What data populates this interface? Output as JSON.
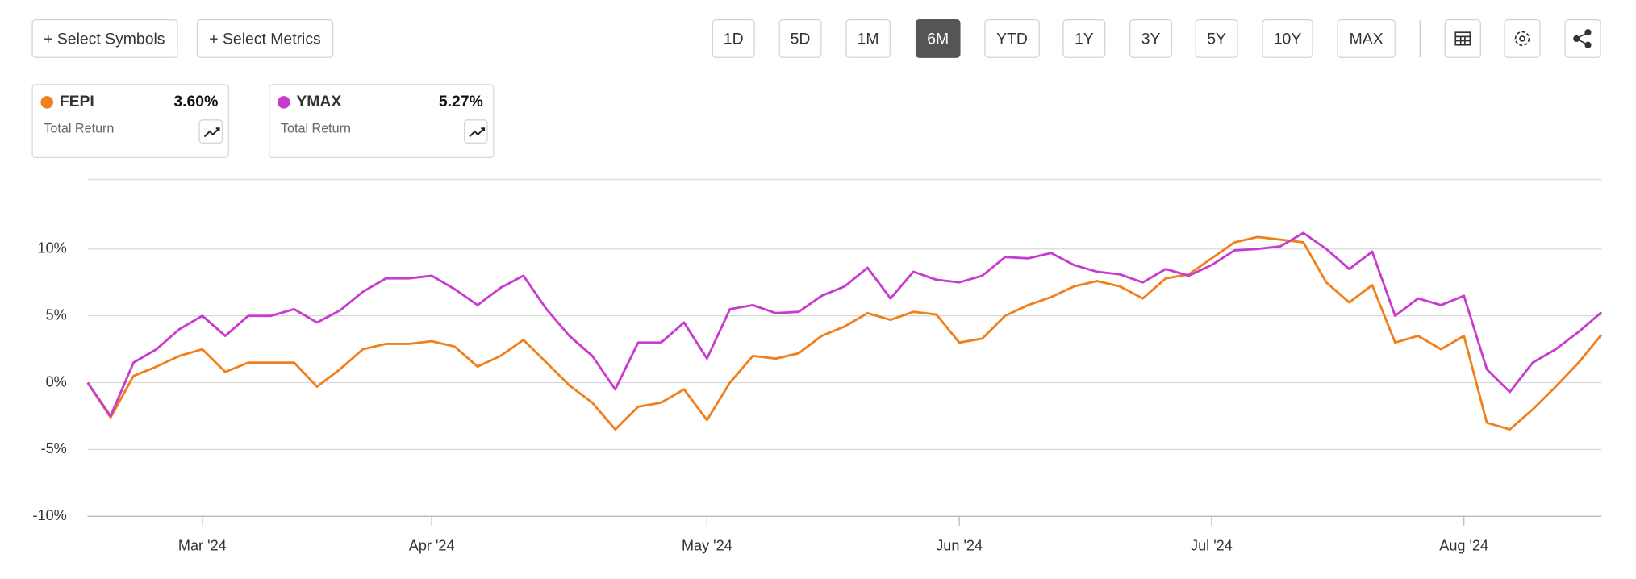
{
  "toolbar": {
    "select_symbols": "+ Select Symbols",
    "select_metrics": "+ Select Metrics",
    "ranges": [
      "1D",
      "5D",
      "1M",
      "6M",
      "YTD",
      "1Y",
      "3Y",
      "5Y",
      "10Y",
      "MAX"
    ],
    "active_range": "6M"
  },
  "chart_data": {
    "type": "line",
    "categories": [
      null,
      null,
      null,
      null,
      null,
      "Mar '24",
      null,
      null,
      null,
      null,
      null,
      null,
      null,
      null,
      null,
      "Apr '24",
      null,
      null,
      null,
      null,
      null,
      null,
      null,
      null,
      null,
      null,
      null,
      "May '24",
      null,
      null,
      null,
      null,
      null,
      null,
      null,
      null,
      null,
      null,
      "Jun '24",
      null,
      null,
      null,
      null,
      null,
      null,
      null,
      null,
      null,
      null,
      "Jul '24",
      null,
      null,
      null,
      null,
      null,
      null,
      null,
      null,
      null,
      null,
      "Aug '24",
      null,
      null,
      null,
      null,
      null,
      null
    ],
    "series": [
      {
        "name": "FEPI",
        "color": "#f07f1c",
        "legend_value": "3.60%",
        "legend_caption": "Total Return",
        "values": [
          0,
          -2.6,
          0.5,
          1.2,
          2.0,
          2.5,
          0.8,
          1.5,
          1.5,
          1.5,
          -0.3,
          1.0,
          2.5,
          2.9,
          2.9,
          3.1,
          2.7,
          1.2,
          2.0,
          3.2,
          1.5,
          -0.2,
          -1.5,
          -3.5,
          -1.8,
          -1.5,
          -0.5,
          -2.8,
          0,
          2.0,
          1.8,
          2.2,
          3.5,
          4.2,
          5.2,
          4.7,
          5.3,
          5.1,
          3.0,
          3.3,
          5.0,
          5.8,
          6.4,
          7.2,
          7.6,
          7.2,
          6.3,
          7.8,
          8.1,
          9.3,
          10.5,
          10.9,
          10.7,
          10.5,
          7.5,
          6.0,
          7.3,
          3.0,
          3.5,
          2.5,
          3.5,
          -3.0,
          -3.5,
          -2.0,
          -0.3,
          1.5,
          3.6
        ]
      },
      {
        "name": "YMAX",
        "color": "#c63cce",
        "legend_value": "5.27%",
        "legend_caption": "Total Return",
        "values": [
          0,
          -2.5,
          1.5,
          2.5,
          4.0,
          5.0,
          3.5,
          5.0,
          5.0,
          5.5,
          4.5,
          5.4,
          6.8,
          7.8,
          7.8,
          8.0,
          7.0,
          5.8,
          7.1,
          8.0,
          5.5,
          3.5,
          2.0,
          -0.5,
          3.0,
          3.0,
          4.5,
          1.8,
          5.5,
          5.8,
          5.2,
          5.3,
          6.5,
          7.2,
          8.6,
          6.3,
          8.3,
          7.7,
          7.5,
          8.0,
          9.4,
          9.3,
          9.7,
          8.8,
          8.3,
          8.1,
          7.5,
          8.5,
          8.0,
          8.8,
          9.9,
          10.0,
          10.2,
          11.2,
          10.0,
          8.5,
          9.8,
          5.0,
          6.3,
          5.8,
          6.5,
          1.0,
          -0.7,
          1.5,
          2.5,
          3.8,
          5.27
        ]
      }
    ],
    "ylim": [
      -10,
      15.2
    ],
    "yticks": [
      {
        "value": -10,
        "label": "-10%"
      },
      {
        "value": -5,
        "label": "-5%"
      },
      {
        "value": 0,
        "label": "0%"
      },
      {
        "value": 5,
        "label": "5%"
      },
      {
        "value": 10,
        "label": "10%"
      }
    ],
    "grid": true
  }
}
